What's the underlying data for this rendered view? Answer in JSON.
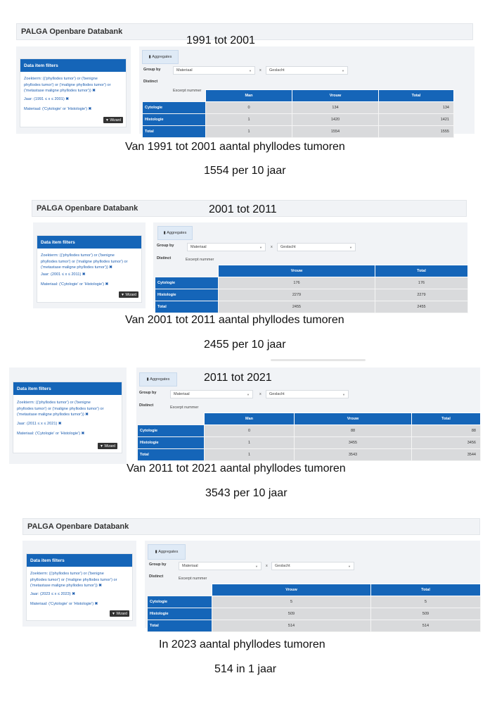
{
  "app_title": "PALGA Openbare Databank",
  "filter_title": "Data item filters",
  "wizard_label": "Wizard",
  "aggregates_label": "Aggregates",
  "group_by_label": "Group by",
  "distinct_label": "Distinct",
  "x_symbol": "x",
  "select_1": "Materiaal",
  "select_2": "Geslacht",
  "excerpt_label": "Excerpt nummer",
  "zoekterm_l1": "Zoekterm: (('phyllodes tumor') or ('benigne",
  "zoekterm_l2": "phyllodes tumor') or ('maligne phyllodes tumor') or",
  "zoekterm_l3": "('metastase maligne phyllodes tumor'))",
  "materiaal_filter": "Materiaal: ('Cytologie' or 'Histologie')",
  "row_labels": [
    "Cytologie",
    "Histologie",
    "Total"
  ],
  "col_man": "Man",
  "col_vrouw": "Vrouw",
  "col_total": "Total",
  "panels": [
    {
      "period": "1991 tot 2001",
      "jaar_filter": "Jaar: (1991 ≤ x ≤ 2001)",
      "rows": [
        [
          "0",
          "134",
          "134"
        ],
        [
          "1",
          "1420",
          "1421"
        ],
        [
          "1",
          "1554",
          "1555"
        ]
      ],
      "caption": "Van 1991 tot  2001  aantal phyllodes tumoren",
      "sub": "1554 per 10 jaar"
    },
    {
      "period": "2001 tot 2011",
      "jaar_filter": "Jaar: (2001 ≤ x ≤ 2011)",
      "rows": [
        [
          "176",
          "176"
        ],
        [
          "2279",
          "2279"
        ],
        [
          "2455",
          "2455"
        ]
      ],
      "caption": "Van 2001 tot  2011  aantal phyllodes tumoren",
      "sub": "2455 per 10 jaar"
    },
    {
      "period": "2011 tot 2021",
      "jaar_filter": "Jaar: (2011 ≤ x ≤ 2021)",
      "rows": [
        [
          "0",
          "88",
          "88"
        ],
        [
          "1",
          "3455",
          "3456"
        ],
        [
          "1",
          "3543",
          "3544"
        ]
      ],
      "caption": "Van 2011 tot  2021  aantal phyllodes tumoren",
      "sub": "3543 per 10 jaar"
    },
    {
      "period": "",
      "jaar_filter": "Jaar: (2023 ≤ x ≤ 2023)",
      "rows": [
        [
          "5",
          "5"
        ],
        [
          "509",
          "509"
        ],
        [
          "514",
          "514"
        ]
      ],
      "caption": "In 2023 aantal phyllodes tumoren",
      "sub": "514  in 1 jaar"
    }
  ]
}
